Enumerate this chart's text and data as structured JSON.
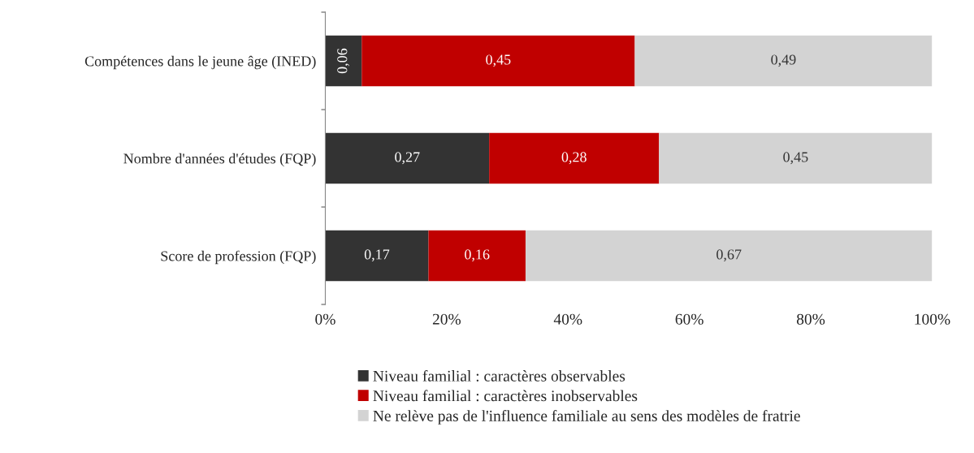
{
  "chart_data": {
    "type": "bar",
    "orientation": "horizontal",
    "stacked": true,
    "categories": [
      "Compétences dans le jeune âge (INED)",
      "Nombre d'années d'études (FQP)",
      "Score de profession (FQP)"
    ],
    "series": [
      {
        "name": "Niveau familial : caractères observables",
        "color": "#333333",
        "values": [
          0.06,
          0.27,
          0.17
        ],
        "value_labels": [
          "0,06",
          "0,27",
          "0,17"
        ]
      },
      {
        "name": "Niveau familial : caractères inobservables",
        "color": "#c00000",
        "values": [
          0.45,
          0.28,
          0.16
        ],
        "value_labels": [
          "0,45",
          "0,28",
          "0,16"
        ]
      },
      {
        "name": "Ne relève pas de l'influence familiale au sens des modèles de fratrie",
        "color": "#d3d3d3",
        "values": [
          0.49,
          0.45,
          0.67
        ],
        "value_labels": [
          "0,49",
          "0,45",
          "0,67"
        ]
      }
    ],
    "xlim": [
      0,
      1
    ],
    "xticks": [
      {
        "value": 0,
        "label": "0%"
      },
      {
        "value": 0.2,
        "label": "20%"
      },
      {
        "value": 0.4,
        "label": "40%"
      },
      {
        "value": 0.6,
        "label": "60%"
      },
      {
        "value": 0.8,
        "label": "80%"
      },
      {
        "value": 1,
        "label": "100%"
      }
    ],
    "grid": false,
    "legend": "bottom"
  }
}
